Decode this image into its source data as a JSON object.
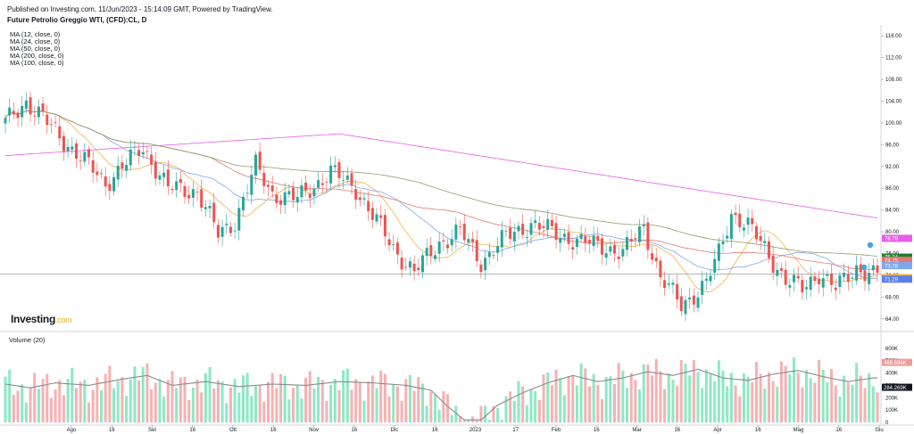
{
  "header": {
    "published": "Published on Investing.com, 11/Jun/2023 - 15:14:09 GMT, Powered by TradingView.",
    "title": "Future Petrolio Greggio WTI, (CFD):CL, D"
  },
  "ma_legend": [
    {
      "label": "MA (12, close, 0)",
      "color": "#f5b041"
    },
    {
      "label": "MA (24, close, 0)",
      "color": "#7fa7ef"
    },
    {
      "label": "MA (50, close, 0)",
      "color": "#e8776f"
    },
    {
      "label": "MA (200, close, 0)",
      "color": "#e85ce8"
    },
    {
      "label": "MA (100, close, 0)",
      "color": "#8f9a6e"
    }
  ],
  "volume_title": "Volume (20)",
  "logo": {
    "text": "Investing",
    "suffix": ".com"
  },
  "colors": {
    "up": "#26a69a",
    "down": "#ef5350",
    "vol_up": "#8de8c4",
    "vol_down": "#f6b1b1"
  },
  "chart_data": {
    "type": "candlestick",
    "title": "Future Petrolio Greggio WTI, (CFD):CL, D",
    "price_axis": {
      "ticks": [
        "116.00",
        "112.00",
        "108.00",
        "104.00",
        "100.00",
        "96.00",
        "92.00",
        "88.00",
        "84.00",
        "80.00",
        "76.00",
        "72.00",
        "68.00",
        "64.00"
      ],
      "range": [
        62,
        118
      ]
    },
    "volume_axis": {
      "ticks": [
        "600K",
        "500K",
        "400K",
        "300K",
        "200K",
        "100K",
        "0"
      ],
      "range": [
        0,
        620
      ]
    },
    "x_ticks": [
      "Ago",
      "16",
      "Set",
      "16",
      "Ott",
      "16",
      "Nov",
      "16",
      "Dic",
      "16",
      "2023",
      "17",
      "Feb",
      "16",
      "Mar",
      "16",
      "Apr",
      "16",
      "Mag",
      "16",
      "Giu"
    ],
    "price_labels": [
      {
        "text": "78.79",
        "value": 78.79,
        "color": "#e85ce8"
      },
      {
        "text": "75.34",
        "value": 75.34,
        "color": "#1e7d32"
      },
      {
        "text": "74.75",
        "value": 74.75,
        "color": "#e8776f"
      },
      {
        "text": "73.78",
        "value": 73.78,
        "color": "#7fa7ef"
      },
      {
        "text": "71.57",
        "value": 71.57,
        "color": "#f5b041"
      },
      {
        "text": "71.29",
        "value": 71.29,
        "color": "#5c7ee8"
      }
    ],
    "volume_labels": [
      {
        "text": "485.596K",
        "value": 485.596,
        "color": "#ef9a9a"
      },
      {
        "text": "284.269K",
        "value": 284.269,
        "color": "#131722"
      }
    ],
    "horizontal_line": 72.2,
    "key_points": [
      [
        0,
        100
      ],
      [
        5,
        104
      ],
      [
        15,
        96
      ],
      [
        24,
        89
      ],
      [
        33,
        95.5
      ],
      [
        39,
        88
      ],
      [
        46,
        87.5
      ],
      [
        51,
        79.5
      ],
      [
        55,
        82
      ],
      [
        60,
        92
      ],
      [
        64,
        87
      ],
      [
        70,
        86
      ],
      [
        78,
        91
      ],
      [
        84,
        88
      ],
      [
        88,
        83
      ],
      [
        93,
        77
      ],
      [
        98,
        72.5
      ],
      [
        104,
        78
      ],
      [
        109,
        80
      ],
      [
        114,
        74.5
      ],
      [
        120,
        79
      ],
      [
        126,
        81.5
      ],
      [
        131,
        80
      ],
      [
        138,
        78
      ],
      [
        143,
        77.5
      ],
      [
        148,
        76
      ],
      [
        153,
        81
      ],
      [
        157,
        71.5
      ],
      [
        162,
        66.5
      ],
      [
        168,
        70.5
      ],
      [
        171,
        76
      ],
      [
        174,
        83.5
      ],
      [
        178,
        81
      ],
      [
        182,
        77
      ],
      [
        187,
        71
      ],
      [
        191,
        69.5
      ],
      [
        195,
        72.5
      ],
      [
        199,
        69.5
      ],
      [
        204,
        73.5
      ],
      [
        208,
        72
      ]
    ],
    "volume_points": [
      [
        0,
        310
      ],
      [
        6,
        280
      ],
      [
        12,
        320
      ],
      [
        20,
        300
      ],
      [
        28,
        350
      ],
      [
        34,
        380
      ],
      [
        40,
        300
      ],
      [
        48,
        330
      ],
      [
        56,
        290
      ],
      [
        64,
        310
      ],
      [
        72,
        300
      ],
      [
        80,
        330
      ],
      [
        88,
        320
      ],
      [
        96,
        300
      ],
      [
        102,
        260
      ],
      [
        106,
        130
      ],
      [
        110,
        20
      ],
      [
        114,
        20
      ],
      [
        118,
        140
      ],
      [
        124,
        240
      ],
      [
        130,
        320
      ],
      [
        136,
        380
      ],
      [
        142,
        330
      ],
      [
        148,
        360
      ],
      [
        154,
        410
      ],
      [
        160,
        380
      ],
      [
        166,
        430
      ],
      [
        172,
        360
      ],
      [
        178,
        340
      ],
      [
        184,
        390
      ],
      [
        190,
        420
      ],
      [
        196,
        370
      ],
      [
        202,
        330
      ],
      [
        208,
        360
      ]
    ]
  }
}
